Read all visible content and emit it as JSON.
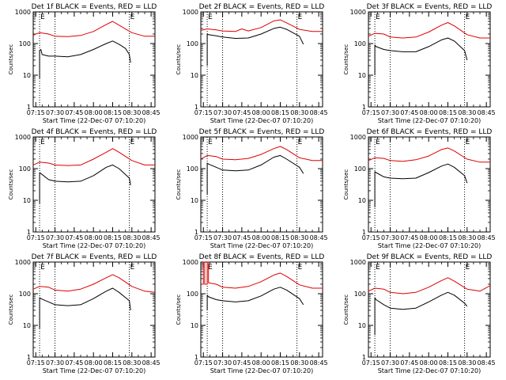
{
  "figure": {
    "xlabel": "Start Time (22-Dec-07 07:10:20)",
    "ylabel": "Counts/sec",
    "x_ticks": [
      "07:15",
      "07:30",
      "07:45",
      "08:00",
      "08:15",
      "08:30",
      "08:45"
    ],
    "y_ticks": [
      "1",
      "10",
      "100",
      "1000"
    ],
    "marker_label": "E"
  },
  "chart_data": [
    {
      "type": "line",
      "title": "Det 1f BLACK = Events, RED = LLD",
      "xlabel": "Start Time (22-Dec-07 07:10:20)",
      "ylabel": "Counts/sec",
      "scale_y": "log",
      "xlim": [
        "07:13",
        "08:48"
      ],
      "ylim": [
        1,
        1000
      ],
      "x_unit": "clock time (HH:MM, 22-Dec-07)",
      "markers": [
        "07:18",
        "07:30",
        "08:28"
      ],
      "series": [
        {
          "name": "Events",
          "color": "#000000",
          "x": [
            "07:18",
            "07:18",
            "07:19",
            "07:20",
            "07:25",
            "07:30",
            "07:40",
            "07:50",
            "08:00",
            "08:10",
            "08:15",
            "08:20",
            "08:25",
            "08:28",
            "08:29"
          ],
          "y": [
            8,
            60,
            65,
            45,
            40,
            40,
            38,
            45,
            65,
            100,
            120,
            95,
            70,
            45,
            25
          ]
        },
        {
          "name": "LLD",
          "color": "#dd0000",
          "x": [
            "07:13",
            "07:15",
            "07:18",
            "07:25",
            "07:30",
            "07:40",
            "07:50",
            "08:00",
            "08:10",
            "08:15",
            "08:20",
            "08:30",
            "08:40",
            "08:48"
          ],
          "y": [
            180,
            200,
            220,
            200,
            170,
            165,
            180,
            240,
            400,
            500,
            380,
            220,
            170,
            170
          ]
        }
      ]
    },
    {
      "type": "line",
      "title": "Det 2f BLACK = Events, RED = LLD",
      "xlabel": "Start Time (22-Dec-07 07:10:20)",
      "ylabel": "Counts/sec",
      "scale_y": "log",
      "xlim": [
        "07:13",
        "08:48"
      ],
      "ylim": [
        1,
        1000
      ],
      "x_unit": "clock time (HH:MM, 22-Dec-07)",
      "markers": [
        "07:18",
        "07:30",
        "08:28"
      ],
      "series": [
        {
          "name": "Events",
          "color": "#000000",
          "x": [
            "07:18",
            "07:18",
            "07:19",
            "07:25",
            "07:30",
            "07:40",
            "07:50",
            "08:00",
            "08:10",
            "08:15",
            "08:20",
            "08:30",
            "08:33"
          ],
          "y": [
            20,
            200,
            190,
            175,
            160,
            145,
            150,
            200,
            300,
            330,
            280,
            170,
            95
          ]
        },
        {
          "name": "LLD",
          "color": "#dd0000",
          "x": [
            "07:13",
            "07:18",
            "07:25",
            "07:30",
            "07:40",
            "07:45",
            "07:50",
            "08:00",
            "08:10",
            "08:15",
            "08:20",
            "08:30",
            "08:40",
            "08:48"
          ],
          "y": [
            260,
            290,
            270,
            250,
            240,
            290,
            250,
            320,
            520,
            560,
            450,
            280,
            240,
            240
          ]
        }
      ]
    },
    {
      "type": "line",
      "title": "Det 3f BLACK = Events, RED = LLD",
      "xlabel": "Start Time (22-Dec-07 07:10:20)",
      "ylabel": "Counts/sec",
      "scale_y": "log",
      "xlim": [
        "07:13",
        "08:48"
      ],
      "ylim": [
        1,
        1000
      ],
      "x_unit": "clock time (HH:MM, 22-Dec-07)",
      "markers": [
        "07:18",
        "07:30",
        "08:28"
      ],
      "series": [
        {
          "name": "Events",
          "color": "#000000",
          "x": [
            "07:18",
            "07:18",
            "07:19",
            "07:25",
            "07:30",
            "07:40",
            "07:50",
            "08:00",
            "08:10",
            "08:15",
            "08:20",
            "08:28",
            "08:30"
          ],
          "y": [
            10,
            90,
            80,
            65,
            60,
            55,
            55,
            80,
            130,
            150,
            120,
            60,
            30
          ]
        },
        {
          "name": "LLD",
          "color": "#dd0000",
          "x": [
            "07:13",
            "07:18",
            "07:25",
            "07:30",
            "07:40",
            "07:50",
            "08:00",
            "08:10",
            "08:15",
            "08:20",
            "08:30",
            "08:40",
            "08:48"
          ],
          "y": [
            170,
            210,
            200,
            160,
            150,
            160,
            230,
            380,
            460,
            360,
            190,
            150,
            150
          ]
        }
      ]
    },
    {
      "type": "line",
      "title": "Det 4f BLACK = Events, RED = LLD",
      "xlabel": "Start Time (22-Dec-07 07:10:20)",
      "ylabel": "Counts/sec",
      "scale_y": "log",
      "xlim": [
        "07:13",
        "08:48"
      ],
      "ylim": [
        1,
        1000
      ],
      "x_unit": "clock time (HH:MM, 22-Dec-07)",
      "markers": [
        "07:18",
        "07:30",
        "08:28"
      ],
      "series": [
        {
          "name": "Events",
          "color": "#000000",
          "x": [
            "07:18",
            "07:18",
            "07:19",
            "07:25",
            "07:30",
            "07:40",
            "07:50",
            "08:00",
            "08:10",
            "08:15",
            "08:20",
            "08:28",
            "08:29"
          ],
          "y": [
            8,
            75,
            70,
            45,
            40,
            38,
            40,
            60,
            110,
            130,
            100,
            50,
            30
          ]
        },
        {
          "name": "LLD",
          "color": "#dd0000",
          "x": [
            "07:13",
            "07:18",
            "07:25",
            "07:30",
            "07:40",
            "07:50",
            "08:00",
            "08:10",
            "08:15",
            "08:20",
            "08:30",
            "08:40",
            "08:48"
          ],
          "y": [
            130,
            160,
            150,
            130,
            125,
            130,
            200,
            330,
            430,
            330,
            180,
            130,
            130
          ]
        }
      ]
    },
    {
      "type": "line",
      "title": "Det 5f BLACK = Events, RED = LLD",
      "xlabel": "Start Time (22-Dec-07 07:10:20)",
      "ylabel": "Counts/sec",
      "scale_y": "log",
      "xlim": [
        "07:13",
        "08:48"
      ],
      "ylim": [
        1,
        1000
      ],
      "x_unit": "clock time (HH:MM, 22-Dec-07)",
      "markers": [
        "07:18",
        "07:30",
        "08:28"
      ],
      "series": [
        {
          "name": "Events",
          "color": "#000000",
          "x": [
            "07:18",
            "07:18",
            "07:19",
            "07:25",
            "07:30",
            "07:40",
            "07:50",
            "08:00",
            "08:10",
            "08:15",
            "08:20",
            "08:30",
            "08:33"
          ],
          "y": [
            15,
            150,
            140,
            110,
            90,
            85,
            90,
            130,
            230,
            260,
            200,
            110,
            70
          ]
        },
        {
          "name": "LLD",
          "color": "#dd0000",
          "x": [
            "07:13",
            "07:18",
            "07:25",
            "07:30",
            "07:40",
            "07:50",
            "08:00",
            "08:10",
            "08:15",
            "08:20",
            "08:30",
            "08:40",
            "08:48"
          ],
          "y": [
            200,
            260,
            240,
            200,
            190,
            210,
            280,
            430,
            500,
            400,
            220,
            180,
            180
          ]
        }
      ]
    },
    {
      "type": "line",
      "title": "Det 6f BLACK = Events, RED = LLD",
      "xlabel": "Start Time (22-Dec-07 07:10:20)",
      "ylabel": "Counts/sec",
      "scale_y": "log",
      "xlim": [
        "07:13",
        "08:48"
      ],
      "ylim": [
        1,
        1000
      ],
      "x_unit": "clock time (HH:MM, 22-Dec-07)",
      "markers": [
        "07:18",
        "07:30",
        "08:28"
      ],
      "series": [
        {
          "name": "Events",
          "color": "#000000",
          "x": [
            "07:18",
            "07:18",
            "07:19",
            "07:25",
            "07:30",
            "07:40",
            "07:50",
            "08:00",
            "08:10",
            "08:15",
            "08:20",
            "08:28",
            "08:30"
          ],
          "y": [
            6,
            80,
            75,
            55,
            50,
            48,
            50,
            75,
            120,
            140,
            110,
            60,
            35
          ]
        },
        {
          "name": "LLD",
          "color": "#dd0000",
          "x": [
            "07:13",
            "07:18",
            "07:25",
            "07:30",
            "07:40",
            "07:50",
            "08:00",
            "08:10",
            "08:15",
            "08:20",
            "08:30",
            "08:40",
            "08:48"
          ],
          "y": [
            180,
            220,
            210,
            180,
            170,
            190,
            250,
            400,
            450,
            360,
            200,
            160,
            160
          ]
        }
      ]
    },
    {
      "type": "line",
      "title": "Det 7f BLACK = Events, RED = LLD",
      "xlabel": "Start Time (22-Dec-07 07:10:20)",
      "ylabel": "Counts/sec",
      "scale_y": "log",
      "xlim": [
        "07:13",
        "08:48"
      ],
      "ylim": [
        1,
        1000
      ],
      "x_unit": "clock time (HH:MM, 22-Dec-07)",
      "markers": [
        "07:18",
        "07:30",
        "08:28"
      ],
      "series": [
        {
          "name": "Events",
          "color": "#000000",
          "x": [
            "07:18",
            "07:18",
            "07:19",
            "07:25",
            "07:30",
            "07:40",
            "07:50",
            "08:00",
            "08:10",
            "08:15",
            "08:20",
            "08:28",
            "08:29"
          ],
          "y": [
            8,
            75,
            70,
            55,
            45,
            42,
            45,
            70,
            120,
            150,
            110,
            60,
            30
          ]
        },
        {
          "name": "LLD",
          "color": "#dd0000",
          "x": [
            "07:13",
            "07:18",
            "07:25",
            "07:30",
            "07:40",
            "07:50",
            "08:00",
            "08:10",
            "08:15",
            "08:20",
            "08:30",
            "08:40",
            "08:48"
          ],
          "y": [
            140,
            170,
            160,
            130,
            120,
            140,
            200,
            320,
            400,
            320,
            170,
            120,
            110
          ]
        }
      ]
    },
    {
      "type": "line",
      "title": "Det 8f BLACK = Events, RED = LLD",
      "xlabel": "Start Time (22-Dec-07 07:10:20)",
      "ylabel": "Counts/sec",
      "scale_y": "log",
      "xlim": [
        "07:13",
        "08:48"
      ],
      "ylim": [
        1,
        1000
      ],
      "x_unit": "clock time (HH:MM, 22-Dec-07)",
      "markers": [
        "07:18",
        "07:30",
        "08:28"
      ],
      "series": [
        {
          "name": "Events",
          "color": "#000000",
          "x": [
            "07:18",
            "07:18",
            "07:19",
            "07:25",
            "07:30",
            "07:40",
            "07:50",
            "08:00",
            "08:10",
            "08:15",
            "08:20",
            "08:30",
            "08:33"
          ],
          "y": [
            30,
            90,
            80,
            65,
            60,
            55,
            60,
            85,
            140,
            160,
            130,
            70,
            45
          ]
        },
        {
          "name": "LLD",
          "color": "#dd0000",
          "x": [
            "07:13",
            "07:15",
            "07:15",
            "07:16",
            "07:16",
            "07:18",
            "07:18",
            "07:19",
            "07:19",
            "07:25",
            "07:30",
            "07:40",
            "07:50",
            "08:00",
            "08:10",
            "08:15",
            "08:20",
            "08:30",
            "08:40",
            "08:48"
          ],
          "y": [
            200,
            200,
            1000,
            1000,
            200,
            200,
            1000,
            1000,
            220,
            200,
            160,
            150,
            170,
            240,
            390,
            450,
            350,
            190,
            150,
            150
          ]
        }
      ]
    },
    {
      "type": "line",
      "title": "Det 9f BLACK = Events, RED = LLD",
      "xlabel": "Start Time (22-Dec-07 07:10:20)",
      "ylabel": "Counts/sec",
      "scale_y": "log",
      "xlim": [
        "07:13",
        "08:48"
      ],
      "ylim": [
        1,
        1000
      ],
      "x_unit": "clock time (HH:MM, 22-Dec-07)",
      "markers": [
        "07:18",
        "07:30",
        "08:28"
      ],
      "series": [
        {
          "name": "Events",
          "color": "#000000",
          "x": [
            "07:18",
            "07:18",
            "07:19",
            "07:25",
            "07:30",
            "07:40",
            "07:50",
            "08:00",
            "08:10",
            "08:15",
            "08:20",
            "08:28",
            "08:30"
          ],
          "y": [
            5,
            75,
            65,
            45,
            35,
            32,
            35,
            55,
            90,
            110,
            90,
            50,
            40
          ]
        },
        {
          "name": "LLD",
          "color": "#dd0000",
          "x": [
            "07:13",
            "07:18",
            "07:25",
            "07:30",
            "07:40",
            "07:50",
            "08:00",
            "08:10",
            "08:15",
            "08:20",
            "08:30",
            "08:40",
            "08:48"
          ],
          "y": [
            120,
            150,
            140,
            110,
            100,
            110,
            160,
            260,
            320,
            250,
            140,
            120,
            180
          ]
        }
      ]
    }
  ]
}
